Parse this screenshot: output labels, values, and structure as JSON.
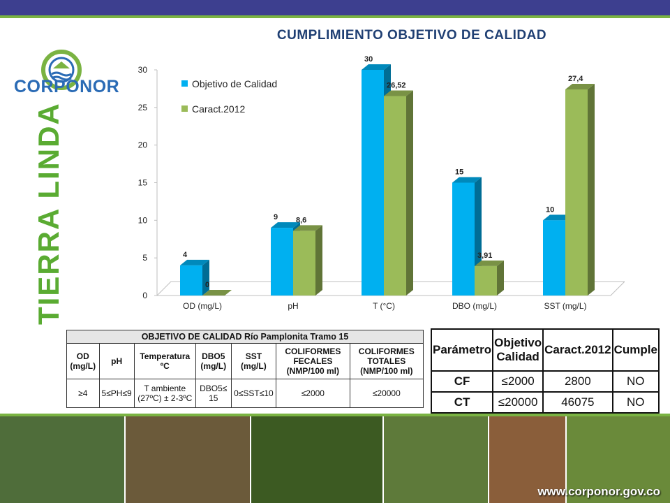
{
  "brand": {
    "logo_text": "CORPONOR",
    "slogan": "TIERRA LINDA",
    "website": "www.corponor.gov.co",
    "colors": {
      "header_bar": "#3d3f8f",
      "accent_green": "#7ab342",
      "logo_blue": "#2a6bb5",
      "slogan_green": "#5aab32"
    }
  },
  "chart_data": {
    "type": "bar",
    "title": "CUMPLIMIENTO OBJETIVO DE CALIDAD",
    "categories": [
      "OD (mg/L)",
      "pH",
      "T (°C)",
      "DBO (mg/L)",
      "SST (mg/L)"
    ],
    "series": [
      {
        "name": "Objetivo de Calidad",
        "values": [
          4,
          9,
          30,
          15,
          10
        ],
        "labels": [
          "4",
          "9",
          "30",
          "15",
          "10"
        ],
        "color": "#00b0f0"
      },
      {
        "name": "Caract.2012",
        "values": [
          0,
          8.6,
          26.52,
          3.91,
          27.4
        ],
        "labels": [
          "0",
          "8,6",
          "26,52",
          "3,91",
          "27,4"
        ],
        "color": "#9bbb59"
      }
    ],
    "yticks": [
      "0",
      "5",
      "10",
      "15",
      "20",
      "25",
      "30"
    ],
    "ylim": [
      0,
      30
    ],
    "legend_position": "top-left",
    "style": "3d-clustered-column"
  },
  "table_objetivo": {
    "title": "OBJETIVO DE CALIDAD Río Pamplonita Tramo 15",
    "headers": [
      "OD (mg/L)",
      "pH",
      "Temperatura ºC",
      "DBO5 (mg/L)",
      "SST (mg/L)",
      "COLIFORMES FECALES (NMP/100 ml)",
      "COLIFORMES TOTALES (NMP/100 ml)"
    ],
    "values": [
      "≥4",
      "5≤PH≤9",
      "T ambiente (27ºC) ± 2-3ºC",
      "DBO5≤ 15",
      "0≤SST≤10",
      "≤2000",
      "≤20000"
    ]
  },
  "table_cumple": {
    "headers": [
      "Parámetro",
      "Objetivo Calidad",
      "Caract.2012",
      "Cumple"
    ],
    "rows": [
      [
        "CF",
        "≤2000",
        "2800",
        "NO"
      ],
      [
        "CT",
        "≤20000",
        "46075",
        "NO"
      ]
    ]
  },
  "photos": [
    {
      "name": "lagoon-landscape-photo",
      "color": "#4f6d3a"
    },
    {
      "name": "toucan-photo",
      "color": "#6b5a3a"
    },
    {
      "name": "yellow-flower-photo",
      "color": "#3c5a22"
    },
    {
      "name": "farmer-in-field-photo",
      "color": "#5e7a3a"
    },
    {
      "name": "boy-portrait-photo",
      "color": "#8a5e3a"
    },
    {
      "name": "students-hiking-photo",
      "color": "#6a8a3a"
    }
  ]
}
